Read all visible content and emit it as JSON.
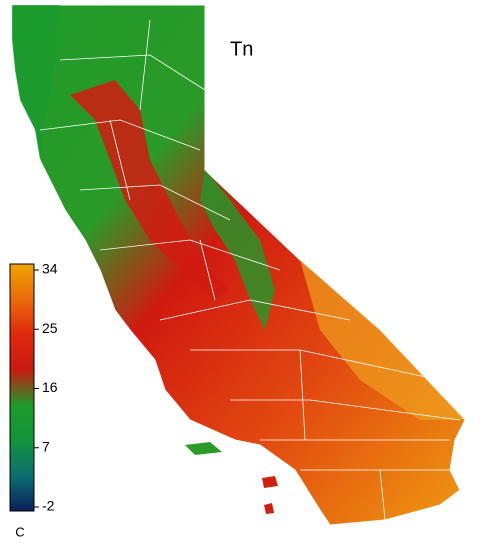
{
  "title": "Tn",
  "colorbar": {
    "lim": [
      -2,
      34
    ],
    "ticks": [
      -2,
      7,
      16,
      25,
      34
    ],
    "unit": "C",
    "colors": [
      "#0b1f5c",
      "#0b6f72",
      "#12953a",
      "#1f9a2a",
      "#c81a12",
      "#e0280c",
      "#ea6a0c",
      "#f2a400"
    ]
  }
}
